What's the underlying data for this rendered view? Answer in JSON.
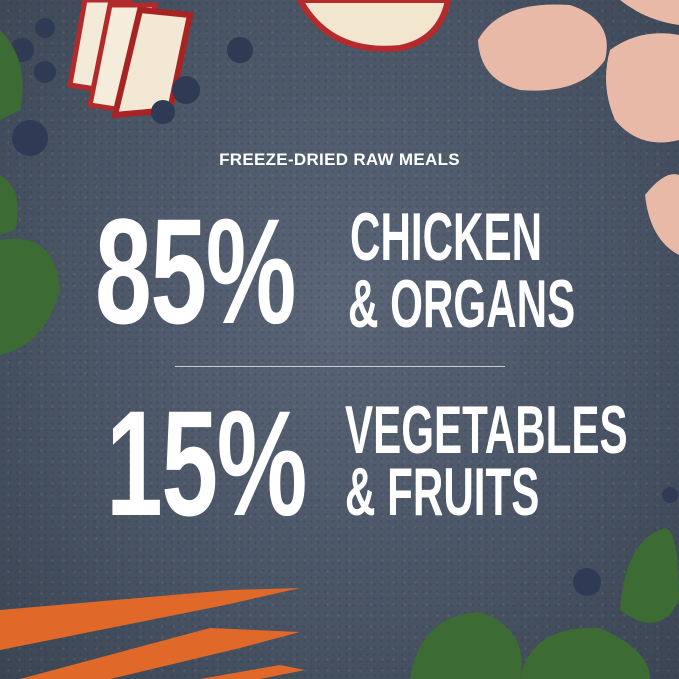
{
  "subtitle": "FREEZE-DRIED RAW MEALS",
  "stat1": {
    "percent": "85%",
    "line1": "CHICKEN",
    "line2": "& ORGANS"
  },
  "stat2": {
    "percent": "15%",
    "line1": "VEGETABLES",
    "line2": "& FRUITS"
  },
  "colors": {
    "background": "#4a5566",
    "text": "#ffffff"
  }
}
